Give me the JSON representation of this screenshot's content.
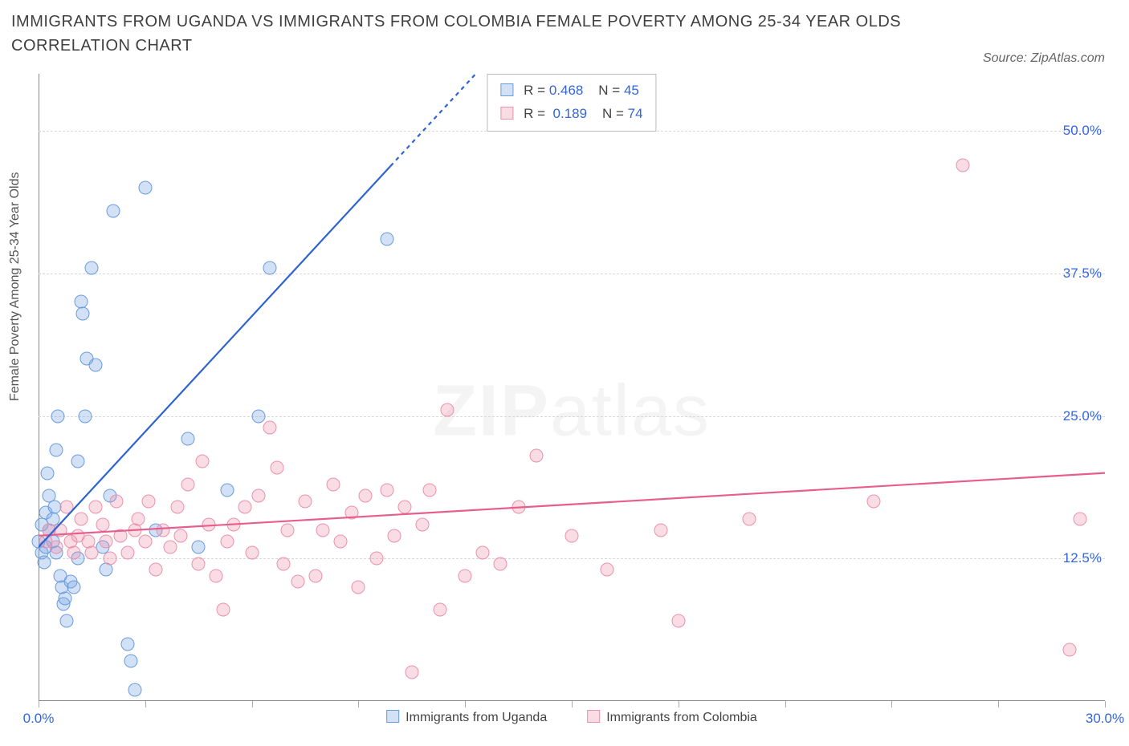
{
  "title_text": "IMMIGRANTS FROM UGANDA VS IMMIGRANTS FROM COLOMBIA FEMALE POVERTY AMONG 25-34 YEAR OLDS CORRELATION CHART",
  "source_text": "Source: ZipAtlas.com",
  "ylabel_text": "Female Poverty Among 25-34 Year Olds",
  "watermark_zip": "ZIP",
  "watermark_atlas": "atlas",
  "chart": {
    "type": "scatter",
    "xlim": [
      0,
      30
    ],
    "ylim": [
      0,
      55
    ],
    "y_gridlines": [
      12.5,
      25.0,
      37.5,
      50.0
    ],
    "y_tick_labels": [
      "12.5%",
      "25.0%",
      "37.5%",
      "50.0%"
    ],
    "x_ticks": [
      0,
      3,
      6,
      9,
      12,
      15,
      18,
      21,
      24,
      27,
      30
    ],
    "x_tick_labels": {
      "0": "0.0%",
      "30": "30.0%"
    },
    "gridline_color": "#d8d8d8",
    "axis_color": "#888888",
    "background_color": "#ffffff",
    "tick_label_color": "#3366dd",
    "marker_radius": 8.5,
    "marker_border_width": 1.5,
    "label_fontsize": 16
  },
  "series": {
    "uganda": {
      "label": "Immigrants from Uganda",
      "fill_color": "rgba(126,170,230,0.35)",
      "stroke_color": "#6a9cdc",
      "R_label": "R =",
      "R_value": "0.468",
      "N_label": "N =",
      "N_value": "45",
      "line_color": "#2e63d0",
      "line_width": 2.2,
      "line_dashed_from_x": 9.9,
      "trend": {
        "x1": 0,
        "y1": 13.5,
        "x2": 12.3,
        "y2": 55
      },
      "points": [
        [
          0.0,
          14.0
        ],
        [
          0.1,
          15.5
        ],
        [
          0.1,
          13.0
        ],
        [
          0.15,
          12.2
        ],
        [
          0.2,
          16.5
        ],
        [
          0.2,
          13.5
        ],
        [
          0.3,
          18.0
        ],
        [
          0.25,
          20.0
        ],
        [
          0.3,
          15.0
        ],
        [
          0.4,
          16.0
        ],
        [
          0.4,
          14.0
        ],
        [
          0.45,
          17.0
        ],
        [
          0.5,
          22.0
        ],
        [
          0.55,
          25.0
        ],
        [
          0.5,
          13.0
        ],
        [
          0.6,
          11.0
        ],
        [
          0.65,
          10.0
        ],
        [
          0.7,
          8.5
        ],
        [
          0.75,
          9.0
        ],
        [
          0.8,
          7.0
        ],
        [
          0.9,
          10.5
        ],
        [
          1.0,
          10.0
        ],
        [
          1.1,
          12.5
        ],
        [
          1.1,
          21.0
        ],
        [
          1.2,
          35.0
        ],
        [
          1.25,
          34.0
        ],
        [
          1.3,
          25.0
        ],
        [
          1.35,
          30.0
        ],
        [
          1.5,
          38.0
        ],
        [
          1.6,
          29.5
        ],
        [
          1.8,
          13.5
        ],
        [
          1.9,
          11.5
        ],
        [
          2.0,
          18.0
        ],
        [
          2.1,
          43.0
        ],
        [
          2.5,
          5.0
        ],
        [
          2.6,
          3.5
        ],
        [
          2.7,
          1.0
        ],
        [
          3.0,
          45.0
        ],
        [
          3.3,
          15.0
        ],
        [
          4.2,
          23.0
        ],
        [
          4.5,
          13.5
        ],
        [
          5.3,
          18.5
        ],
        [
          6.2,
          25.0
        ],
        [
          6.5,
          38.0
        ],
        [
          9.8,
          40.5
        ]
      ]
    },
    "colombia": {
      "label": "Immigrants from Colombia",
      "fill_color": "rgba(240,140,170,0.30)",
      "stroke_color": "#e892ad",
      "R_label": "R =",
      "R_value": "0.189",
      "N_label": "N =",
      "N_value": "74",
      "line_color": "#e75e8c",
      "line_width": 2.2,
      "trend": {
        "x1": 0,
        "y1": 14.5,
        "x2": 30,
        "y2": 20.0
      },
      "points": [
        [
          0.2,
          14.0
        ],
        [
          0.3,
          15.0
        ],
        [
          0.5,
          13.5
        ],
        [
          0.6,
          15.0
        ],
        [
          0.8,
          17.0
        ],
        [
          0.9,
          14.0
        ],
        [
          1.0,
          13.0
        ],
        [
          1.1,
          14.5
        ],
        [
          1.2,
          16.0
        ],
        [
          1.4,
          14.0
        ],
        [
          1.5,
          13.0
        ],
        [
          1.6,
          17.0
        ],
        [
          1.8,
          15.5
        ],
        [
          1.9,
          14.0
        ],
        [
          2.0,
          12.5
        ],
        [
          2.2,
          17.5
        ],
        [
          2.3,
          14.5
        ],
        [
          2.5,
          13.0
        ],
        [
          2.7,
          15.0
        ],
        [
          2.8,
          16.0
        ],
        [
          3.0,
          14.0
        ],
        [
          3.1,
          17.5
        ],
        [
          3.3,
          11.5
        ],
        [
          3.5,
          15.0
        ],
        [
          3.7,
          13.5
        ],
        [
          3.9,
          17.0
        ],
        [
          4.0,
          14.5
        ],
        [
          4.2,
          19.0
        ],
        [
          4.5,
          12.0
        ],
        [
          4.6,
          21.0
        ],
        [
          4.8,
          15.5
        ],
        [
          5.0,
          11.0
        ],
        [
          5.2,
          8.0
        ],
        [
          5.3,
          14.0
        ],
        [
          5.5,
          15.5
        ],
        [
          5.8,
          17.0
        ],
        [
          6.0,
          13.0
        ],
        [
          6.2,
          18.0
        ],
        [
          6.5,
          24.0
        ],
        [
          6.7,
          20.5
        ],
        [
          6.9,
          12.0
        ],
        [
          7.0,
          15.0
        ],
        [
          7.3,
          10.5
        ],
        [
          7.5,
          17.5
        ],
        [
          7.8,
          11.0
        ],
        [
          8.0,
          15.0
        ],
        [
          8.3,
          19.0
        ],
        [
          8.5,
          14.0
        ],
        [
          8.8,
          16.5
        ],
        [
          9.0,
          10.0
        ],
        [
          9.2,
          18.0
        ],
        [
          9.5,
          12.5
        ],
        [
          9.8,
          18.5
        ],
        [
          10.0,
          14.5
        ],
        [
          10.3,
          17.0
        ],
        [
          10.5,
          2.5
        ],
        [
          10.8,
          15.5
        ],
        [
          11.0,
          18.5
        ],
        [
          11.3,
          8.0
        ],
        [
          11.5,
          25.5
        ],
        [
          12.0,
          11.0
        ],
        [
          12.5,
          13.0
        ],
        [
          13.0,
          12.0
        ],
        [
          13.5,
          17.0
        ],
        [
          14.0,
          21.5
        ],
        [
          15.0,
          14.5
        ],
        [
          16.0,
          11.5
        ],
        [
          17.5,
          15.0
        ],
        [
          18.0,
          7.0
        ],
        [
          20.0,
          16.0
        ],
        [
          23.5,
          17.5
        ],
        [
          26.0,
          47.0
        ],
        [
          29.0,
          4.5
        ],
        [
          29.3,
          16.0
        ]
      ]
    }
  }
}
